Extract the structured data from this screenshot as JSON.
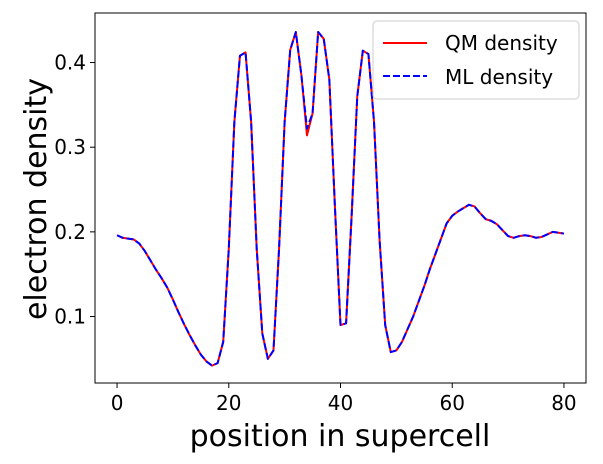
{
  "chart_data": {
    "type": "line",
    "title": "",
    "xlabel": "position in supercell",
    "ylabel": "electron density",
    "xlim": [
      -3.95,
      83.95
    ],
    "ylim": [
      0.0215,
      0.4585
    ],
    "xticks": [
      0,
      20,
      40,
      60,
      80
    ],
    "xtick_labels": [
      "0",
      "20",
      "40",
      "60",
      "80"
    ],
    "yticks": [
      0.1,
      0.2,
      0.3,
      0.4
    ],
    "ytick_labels": [
      "0.1",
      "0.2",
      "0.3",
      "0.4"
    ],
    "grid": false,
    "legend_position": "top-right",
    "x": [
      0,
      1,
      2,
      3,
      4,
      5,
      6,
      7,
      8,
      9,
      10,
      11,
      12,
      13,
      14,
      15,
      16,
      17,
      18,
      19,
      20,
      21,
      22,
      23,
      24,
      25,
      26,
      27,
      28,
      29,
      30,
      31,
      32,
      33,
      34,
      35,
      36,
      37,
      38,
      39,
      40,
      41,
      42,
      43,
      44,
      45,
      46,
      47,
      48,
      49,
      50,
      51,
      52,
      53,
      54,
      55,
      56,
      57,
      58,
      59,
      60,
      61,
      62,
      63,
      64,
      65,
      66,
      67,
      68,
      69,
      70,
      71,
      72,
      73,
      74,
      75,
      76,
      77,
      78,
      79,
      80
    ],
    "series": [
      {
        "name": "QM density",
        "color": "#ff0000",
        "dash": "solid",
        "values": [
          0.196,
          0.193,
          0.192,
          0.191,
          0.186,
          0.177,
          0.166,
          0.155,
          0.145,
          0.134,
          0.12,
          0.105,
          0.091,
          0.078,
          0.066,
          0.055,
          0.047,
          0.042,
          0.045,
          0.07,
          0.18,
          0.33,
          0.408,
          0.412,
          0.33,
          0.18,
          0.08,
          0.05,
          0.06,
          0.18,
          0.33,
          0.415,
          0.436,
          0.385,
          0.314,
          0.34,
          0.436,
          0.428,
          0.38,
          0.23,
          0.09,
          0.092,
          0.22,
          0.36,
          0.414,
          0.41,
          0.33,
          0.19,
          0.09,
          0.058,
          0.06,
          0.07,
          0.085,
          0.1,
          0.118,
          0.136,
          0.156,
          0.174,
          0.192,
          0.21,
          0.219,
          0.224,
          0.228,
          0.232,
          0.23,
          0.222,
          0.215,
          0.213,
          0.209,
          0.202,
          0.195,
          0.193,
          0.195,
          0.196,
          0.195,
          0.193,
          0.194,
          0.197,
          0.2,
          0.199,
          0.198
        ]
      },
      {
        "name": "ML density",
        "color": "#0000ff",
        "dash": "dashed",
        "values": [
          0.196,
          0.193,
          0.192,
          0.191,
          0.186,
          0.177,
          0.166,
          0.155,
          0.145,
          0.134,
          0.12,
          0.105,
          0.091,
          0.078,
          0.066,
          0.055,
          0.047,
          0.042,
          0.045,
          0.07,
          0.18,
          0.33,
          0.408,
          0.412,
          0.33,
          0.18,
          0.08,
          0.05,
          0.06,
          0.18,
          0.33,
          0.415,
          0.436,
          0.385,
          0.322,
          0.34,
          0.436,
          0.428,
          0.38,
          0.23,
          0.09,
          0.092,
          0.22,
          0.36,
          0.414,
          0.41,
          0.33,
          0.19,
          0.09,
          0.058,
          0.06,
          0.07,
          0.085,
          0.1,
          0.118,
          0.136,
          0.156,
          0.174,
          0.192,
          0.21,
          0.219,
          0.224,
          0.228,
          0.232,
          0.23,
          0.222,
          0.215,
          0.213,
          0.209,
          0.202,
          0.195,
          0.193,
          0.195,
          0.196,
          0.195,
          0.193,
          0.194,
          0.197,
          0.2,
          0.199,
          0.198
        ]
      }
    ]
  }
}
